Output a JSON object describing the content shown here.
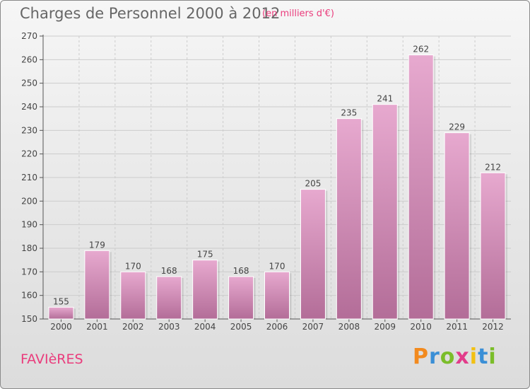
{
  "header": {
    "title": "Charges de Personnel 2000 à 2012",
    "subtitle": "(en milliers d'€)"
  },
  "footer": {
    "place": "FAVIèRES",
    "brand_letters": [
      "P",
      "r",
      "o",
      "x",
      "i",
      "t",
      "i"
    ],
    "brand_colors": [
      "#f28a1e",
      "#3a8fd6",
      "#7bbd2a",
      "#e23c8a",
      "#f2c012",
      "#3a8fd6",
      "#7bbd2a"
    ]
  },
  "colors": {
    "bar_top": "#e7a9cf",
    "bar_bottom": "#b36d98",
    "grid": "#cccccc",
    "axis": "#555555"
  },
  "chart_data": {
    "type": "bar",
    "categories": [
      "2000",
      "2001",
      "2002",
      "2003",
      "2004",
      "2005",
      "2006",
      "2007",
      "2008",
      "2009",
      "2010",
      "2011",
      "2012"
    ],
    "values": [
      155,
      179,
      170,
      168,
      175,
      168,
      170,
      205,
      235,
      241,
      262,
      229,
      212
    ],
    "title": "Charges de Personnel 2000 à 2012",
    "subtitle": "(en milliers d'€)",
    "xlabel": "",
    "ylabel": "",
    "ylim": [
      150,
      270
    ],
    "yticks": [
      150,
      160,
      170,
      180,
      190,
      200,
      210,
      220,
      230,
      240,
      250,
      260,
      270
    ],
    "grid": true,
    "data_labels": true
  }
}
